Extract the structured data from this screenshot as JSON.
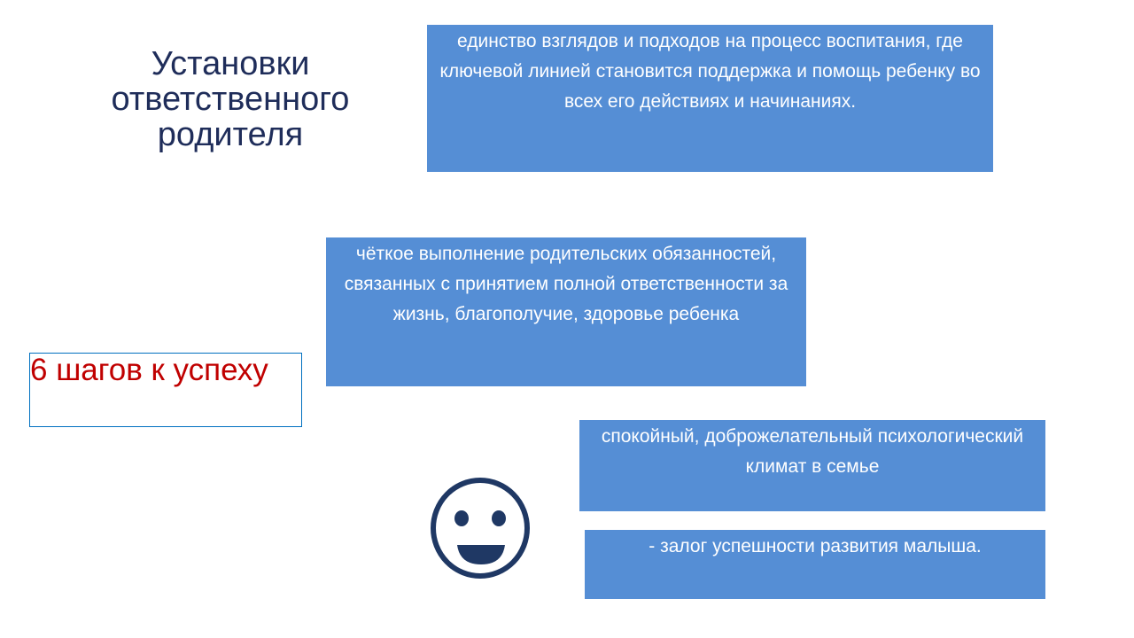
{
  "title": "Установки ответственного родителя",
  "steps_label": "6 шагов к успеху",
  "boxes": [
    "единство взглядов и подходов на процесс воспитания, где ключевой линией становится поддержка и помощь ребенку во всех его действиях и начинаниях.",
    "чёткое выполнение родительских обязанностей, связанных с принятием полной ответственности за жизнь, благополучие, здоровье ребенка",
    "спокойный, доброжелательный психологический климат в семье",
    "- залог успешности развития малыша."
  ],
  "icons": {
    "smiley": "smiley-face-icon"
  },
  "colors": {
    "box": "#558ed5",
    "title": "#1f2d5a",
    "steps": "#c00000",
    "icon": "#1f3864"
  }
}
